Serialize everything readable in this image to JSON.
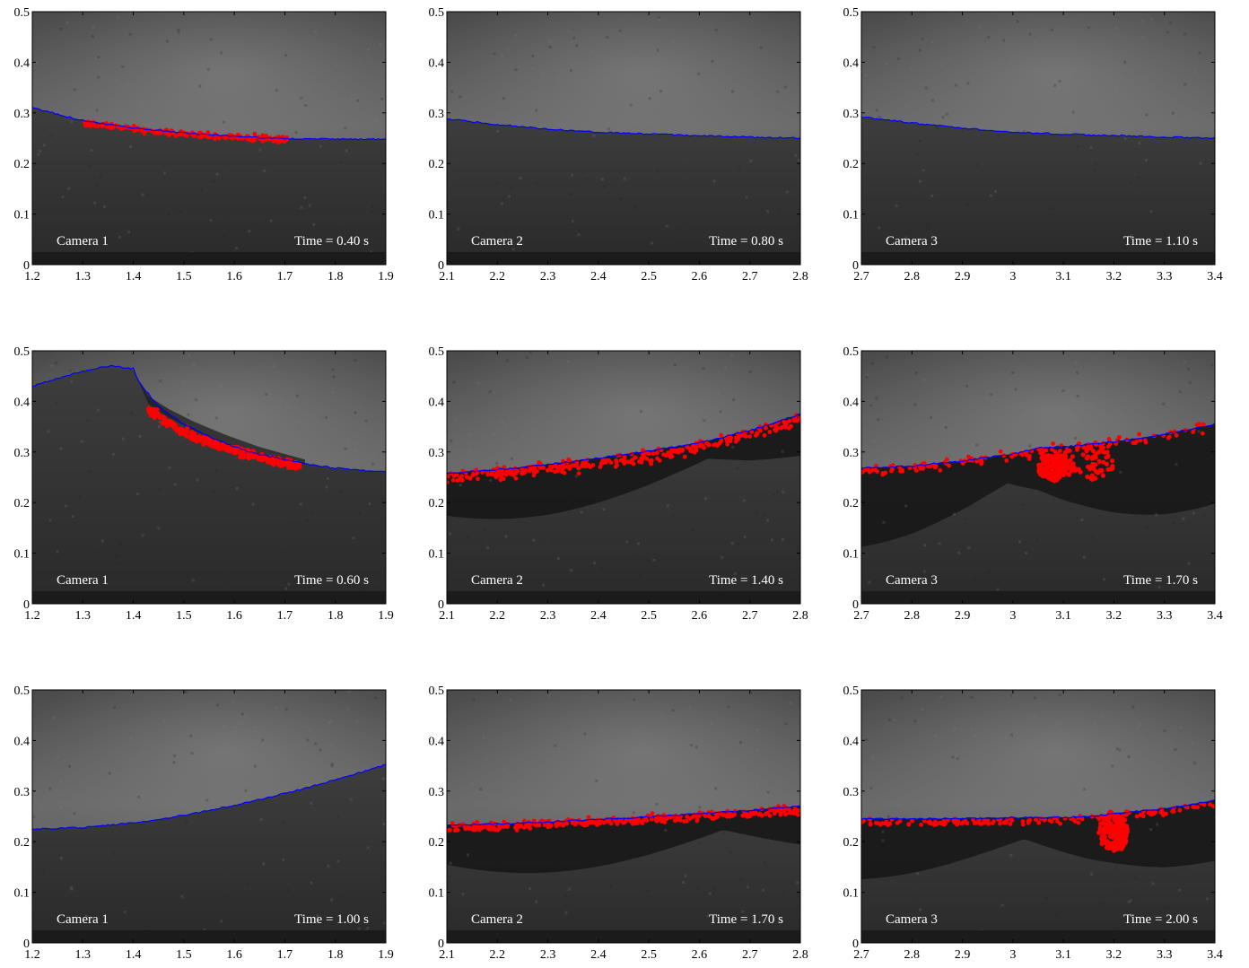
{
  "chart_data": [
    {
      "type": "scatter",
      "camera_label": "Camera 1",
      "time_label": "Time = 0.40 s",
      "xlim": [
        1.2,
        1.9
      ],
      "ylim": [
        0,
        0.5
      ],
      "xticks": [
        "1.2",
        "1.3",
        "1.4",
        "1.5",
        "1.6",
        "1.7",
        "1.8",
        "1.9"
      ],
      "yticks": [
        "0",
        "0.1",
        "0.2",
        "0.3",
        "0.4",
        "0.5"
      ],
      "scene": "wave1",
      "surface": [
        [
          1.2,
          0.31
        ],
        [
          1.3,
          0.285
        ],
        [
          1.4,
          0.27
        ],
        [
          1.5,
          0.26
        ],
        [
          1.6,
          0.253
        ],
        [
          1.7,
          0.249
        ],
        [
          1.8,
          0.248
        ],
        [
          1.9,
          0.248
        ]
      ],
      "particles": {
        "band": [
          [
            1.3,
            0.28
          ],
          [
            1.4,
            0.268
          ],
          [
            1.5,
            0.258
          ],
          [
            1.6,
            0.252
          ],
          [
            1.71,
            0.247
          ]
        ],
        "spread": 0.006,
        "count": 180
      },
      "interface_line_color": "#0000ff",
      "particle_color": "#ff0000"
    },
    {
      "type": "line",
      "camera_label": "Camera 2",
      "time_label": "Time = 0.80 s",
      "xlim": [
        2.1,
        2.8
      ],
      "ylim": [
        0,
        0.5
      ],
      "xticks": [
        "2.1",
        "2.2",
        "2.3",
        "2.4",
        "2.5",
        "2.6",
        "2.7",
        "2.8"
      ],
      "yticks": [
        "0",
        "0.1",
        "0.2",
        "0.3",
        "0.4",
        "0.5"
      ],
      "scene": "flat",
      "surface": [
        [
          2.1,
          0.288
        ],
        [
          2.2,
          0.277
        ],
        [
          2.3,
          0.268
        ],
        [
          2.4,
          0.262
        ],
        [
          2.5,
          0.258
        ],
        [
          2.6,
          0.255
        ],
        [
          2.7,
          0.252
        ],
        [
          2.8,
          0.25
        ]
      ],
      "interface_line_color": "#0000ff"
    },
    {
      "type": "line",
      "camera_label": "Camera 3",
      "time_label": "Time = 1.10 s",
      "xlim": [
        2.7,
        3.4
      ],
      "ylim": [
        0,
        0.5
      ],
      "xticks": [
        "2.7",
        "2.8",
        "2.9",
        "3",
        "3.1",
        "3.2",
        "3.3",
        "3.4"
      ],
      "yticks": [
        "0",
        "0.1",
        "0.2",
        "0.3",
        "0.4",
        "0.5"
      ],
      "scene": "flat3",
      "surface": [
        [
          2.7,
          0.292
        ],
        [
          2.8,
          0.28
        ],
        [
          2.9,
          0.27
        ],
        [
          3.0,
          0.262
        ],
        [
          3.1,
          0.258
        ],
        [
          3.2,
          0.255
        ],
        [
          3.3,
          0.252
        ],
        [
          3.4,
          0.25
        ]
      ],
      "interface_line_color": "#0000ff"
    },
    {
      "type": "scatter",
      "camera_label": "Camera 1",
      "time_label": "Time = 0.60 s",
      "xlim": [
        1.2,
        1.9
      ],
      "ylim": [
        0,
        0.5
      ],
      "xticks": [
        "1.2",
        "1.3",
        "1.4",
        "1.5",
        "1.6",
        "1.7",
        "1.8",
        "1.9"
      ],
      "yticks": [
        "0",
        "0.1",
        "0.2",
        "0.3",
        "0.4",
        "0.5"
      ],
      "scene": "crest",
      "surface": [
        [
          1.2,
          0.43
        ],
        [
          1.25,
          0.445
        ],
        [
          1.3,
          0.46
        ],
        [
          1.35,
          0.47
        ],
        [
          1.4,
          0.465
        ],
        [
          1.41,
          0.44
        ],
        [
          1.45,
          0.39
        ],
        [
          1.5,
          0.355
        ],
        [
          1.55,
          0.33
        ],
        [
          1.6,
          0.31
        ],
        [
          1.65,
          0.295
        ],
        [
          1.7,
          0.285
        ],
        [
          1.75,
          0.275
        ],
        [
          1.8,
          0.268
        ],
        [
          1.9,
          0.26
        ]
      ],
      "particles": {
        "band": [
          [
            1.43,
            0.385
          ],
          [
            1.47,
            0.355
          ],
          [
            1.52,
            0.33
          ],
          [
            1.58,
            0.31
          ],
          [
            1.65,
            0.29
          ],
          [
            1.73,
            0.272
          ]
        ],
        "spread": 0.009,
        "count": 380
      },
      "interface_line_color": "#0000ff",
      "particle_color": "#ff0000"
    },
    {
      "type": "scatter",
      "camera_label": "Camera 2",
      "time_label": "Time = 1.40 s",
      "xlim": [
        2.1,
        2.8
      ],
      "ylim": [
        0,
        0.5
      ],
      "xticks": [
        "2.1",
        "2.2",
        "2.3",
        "2.4",
        "2.5",
        "2.6",
        "2.7",
        "2.8"
      ],
      "yticks": [
        "0",
        "0.1",
        "0.2",
        "0.3",
        "0.4",
        "0.5"
      ],
      "scene": "rise2",
      "surface": [
        [
          2.1,
          0.258
        ],
        [
          2.2,
          0.265
        ],
        [
          2.3,
          0.275
        ],
        [
          2.4,
          0.288
        ],
        [
          2.5,
          0.302
        ],
        [
          2.6,
          0.318
        ],
        [
          2.7,
          0.342
        ],
        [
          2.8,
          0.375
        ]
      ],
      "particles": {
        "band": [
          [
            2.1,
            0.252
          ],
          [
            2.2,
            0.258
          ],
          [
            2.3,
            0.267
          ],
          [
            2.4,
            0.278
          ],
          [
            2.5,
            0.292
          ],
          [
            2.6,
            0.31
          ],
          [
            2.7,
            0.335
          ],
          [
            2.8,
            0.365
          ]
        ],
        "spread": 0.012,
        "count": 300
      },
      "interface_line_color": "#0000ff",
      "particle_color": "#ff0000"
    },
    {
      "type": "scatter",
      "camera_label": "Camera 3",
      "time_label": "Time = 1.70 s",
      "xlim": [
        2.7,
        3.4
      ],
      "ylim": [
        0,
        0.5
      ],
      "xticks": [
        "2.7",
        "2.8",
        "2.9",
        "3",
        "3.1",
        "3.2",
        "3.3",
        "3.4"
      ],
      "yticks": [
        "0",
        "0.1",
        "0.2",
        "0.3",
        "0.4",
        "0.5"
      ],
      "scene": "break3",
      "surface": [
        [
          2.7,
          0.268
        ],
        [
          2.8,
          0.272
        ],
        [
          2.9,
          0.282
        ],
        [
          3.0,
          0.296
        ],
        [
          3.05,
          0.308
        ],
        [
          3.1,
          0.31
        ],
        [
          3.2,
          0.32
        ],
        [
          3.3,
          0.335
        ],
        [
          3.4,
          0.355
        ]
      ],
      "particles": {
        "band": [
          [
            2.7,
            0.262
          ],
          [
            2.8,
            0.268
          ],
          [
            2.9,
            0.278
          ],
          [
            3.0,
            0.292
          ],
          [
            3.1,
            0.305
          ],
          [
            3.2,
            0.318
          ],
          [
            3.3,
            0.332
          ],
          [
            3.4,
            0.35
          ]
        ],
        "spread": 0.01,
        "count": 120,
        "clusters": [
          {
            "cx": 3.08,
            "cy": 0.27,
            "rx": 0.03,
            "ry": 0.028,
            "count": 170
          },
          {
            "cx": 3.15,
            "cy": 0.28,
            "rx": 0.05,
            "ry": 0.04,
            "count": 70
          }
        ]
      },
      "interface_line_color": "#0000ff",
      "particle_color": "#ff0000"
    },
    {
      "type": "line",
      "camera_label": "Camera 1",
      "time_label": "Time = 1.00 s",
      "xlim": [
        1.2,
        1.9
      ],
      "ylim": [
        0,
        0.5
      ],
      "xticks": [
        "1.2",
        "1.3",
        "1.4",
        "1.5",
        "1.6",
        "1.7",
        "1.8",
        "1.9"
      ],
      "yticks": [
        "0",
        "0.1",
        "0.2",
        "0.3",
        "0.4",
        "0.5"
      ],
      "scene": "rise1",
      "surface": [
        [
          1.2,
          0.225
        ],
        [
          1.3,
          0.228
        ],
        [
          1.4,
          0.237
        ],
        [
          1.5,
          0.252
        ],
        [
          1.6,
          0.272
        ],
        [
          1.7,
          0.295
        ],
        [
          1.8,
          0.322
        ],
        [
          1.9,
          0.352
        ]
      ],
      "interface_line_color": "#0000ff"
    },
    {
      "type": "scatter",
      "camera_label": "Camera 2",
      "time_label": "Time = 1.70 s",
      "xlim": [
        2.1,
        2.8
      ],
      "ylim": [
        0,
        0.5
      ],
      "xticks": [
        "2.1",
        "2.2",
        "2.3",
        "2.4",
        "2.5",
        "2.6",
        "2.7",
        "2.8"
      ],
      "yticks": [
        "0",
        "0.1",
        "0.2",
        "0.3",
        "0.4",
        "0.5"
      ],
      "scene": "late2",
      "surface": [
        [
          2.1,
          0.232
        ],
        [
          2.2,
          0.235
        ],
        [
          2.3,
          0.239
        ],
        [
          2.4,
          0.244
        ],
        [
          2.5,
          0.249
        ],
        [
          2.6,
          0.255
        ],
        [
          2.7,
          0.262
        ],
        [
          2.8,
          0.27
        ]
      ],
      "particles": {
        "band": [
          [
            2.1,
            0.227
          ],
          [
            2.2,
            0.23
          ],
          [
            2.3,
            0.234
          ],
          [
            2.4,
            0.239
          ],
          [
            2.5,
            0.244
          ],
          [
            2.6,
            0.25
          ],
          [
            2.7,
            0.256
          ],
          [
            2.8,
            0.264
          ]
        ],
        "spread": 0.008,
        "count": 320
      },
      "interface_line_color": "#0000ff",
      "particle_color": "#ff0000"
    },
    {
      "type": "scatter",
      "camera_label": "Camera 3",
      "time_label": "Time = 2.00 s",
      "xlim": [
        2.7,
        3.4
      ],
      "ylim": [
        0,
        0.5
      ],
      "xticks": [
        "2.7",
        "2.8",
        "2.9",
        "3",
        "3.1",
        "3.2",
        "3.3",
        "3.4"
      ],
      "yticks": [
        "0",
        "0.1",
        "0.2",
        "0.3",
        "0.4",
        "0.5"
      ],
      "scene": "late3",
      "surface": [
        [
          2.7,
          0.245
        ],
        [
          2.8,
          0.245
        ],
        [
          2.9,
          0.246
        ],
        [
          3.0,
          0.247
        ],
        [
          3.1,
          0.248
        ],
        [
          3.15,
          0.25
        ],
        [
          3.2,
          0.255
        ],
        [
          3.3,
          0.265
        ],
        [
          3.4,
          0.282
        ]
      ],
      "particles": {
        "band": [
          [
            2.7,
            0.238
          ],
          [
            2.8,
            0.238
          ],
          [
            2.9,
            0.238
          ],
          [
            3.0,
            0.24
          ],
          [
            3.1,
            0.242
          ],
          [
            3.2,
            0.25
          ],
          [
            3.3,
            0.26
          ],
          [
            3.4,
            0.275
          ]
        ],
        "spread": 0.006,
        "count": 160,
        "clusters": [
          {
            "cx": 3.2,
            "cy": 0.22,
            "rx": 0.03,
            "ry": 0.04,
            "count": 150
          }
        ]
      },
      "interface_line_color": "#0000ff",
      "particle_color": "#ff0000"
    }
  ]
}
